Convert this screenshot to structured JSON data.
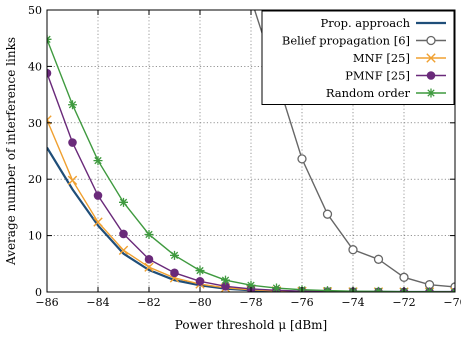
{
  "chart_data": {
    "type": "line",
    "title": "",
    "xlabel": "Power threshold μ [dBm]",
    "ylabel": "Average number of interference links",
    "xlim": [
      -86,
      -70
    ],
    "ylim": [
      0,
      50
    ],
    "x_ticks": [
      -86,
      -84,
      -82,
      -80,
      -78,
      -76,
      -74,
      -72,
      -70
    ],
    "x_tick_labels": [
      "−86",
      "−84",
      "−82",
      "−80",
      "−78",
      "−76",
      "−74",
      "−72",
      "−70"
    ],
    "y_ticks": [
      0,
      10,
      20,
      30,
      40,
      50
    ],
    "y_tick_labels": [
      "0",
      "10",
      "20",
      "30",
      "40",
      "50"
    ],
    "grid": true,
    "legend_position": "top-right",
    "series": [
      {
        "name": "Prop. approach",
        "color": "#1f4e79",
        "marker": "none",
        "x": [
          -86,
          -85,
          -84,
          -83,
          -82,
          -81,
          -80,
          -79,
          -78,
          -77,
          -76,
          -75,
          -74,
          -73,
          -72,
          -71,
          -70
        ],
        "y": [
          25.6,
          18.2,
          11.8,
          6.8,
          3.9,
          2.1,
          1.2,
          0.6,
          0.3,
          0.15,
          0.08,
          0.05,
          0.03,
          0.02,
          0.01,
          0.01,
          0.0
        ]
      },
      {
        "name": "Belief propagation [6]",
        "color": "#666666",
        "marker": "circle-open",
        "x": [
          -78,
          -77,
          -76,
          -75,
          -74,
          -73,
          -72,
          -71,
          -70
        ],
        "y": [
          52,
          38,
          23.6,
          13.8,
          7.5,
          5.8,
          2.6,
          1.3,
          0.9
        ]
      },
      {
        "name": "MNF [25]",
        "color": "#f0a030",
        "marker": "x",
        "x": [
          -86,
          -85,
          -84,
          -83,
          -82,
          -81,
          -80,
          -79,
          -78,
          -77,
          -76,
          -75,
          -74,
          -73,
          -72,
          -71,
          -70
        ],
        "y": [
          30.5,
          19.8,
          12.4,
          7.4,
          4.4,
          2.5,
          1.4,
          0.75,
          0.4,
          0.2,
          0.1,
          0.06,
          0.04,
          0.02,
          0.01,
          0.01,
          0.0
        ]
      },
      {
        "name": "PMNF [25]",
        "color": "#6a2a7a",
        "marker": "circle-filled",
        "x": [
          -86,
          -85,
          -84,
          -83,
          -82,
          -81,
          -80,
          -79,
          -78,
          -77,
          -76,
          -75,
          -74,
          -73,
          -72,
          -71,
          -70
        ],
        "y": [
          38.8,
          26.5,
          17.1,
          10.3,
          5.8,
          3.4,
          1.9,
          1.0,
          0.55,
          0.3,
          0.15,
          0.08,
          0.05,
          0.03,
          0.02,
          0.01,
          0.0
        ]
      },
      {
        "name": "Random order",
        "color": "#3f9a3f",
        "marker": "asterisk",
        "x": [
          -86,
          -85,
          -84,
          -83,
          -82,
          -81,
          -80,
          -79,
          -78,
          -77,
          -76,
          -75,
          -74,
          -73,
          -72,
          -71,
          -70
        ],
        "y": [
          44.8,
          33.2,
          23.3,
          15.9,
          10.2,
          6.5,
          3.8,
          2.1,
          1.2,
          0.7,
          0.4,
          0.25,
          0.15,
          0.1,
          0.06,
          0.03,
          0.02
        ]
      }
    ]
  }
}
